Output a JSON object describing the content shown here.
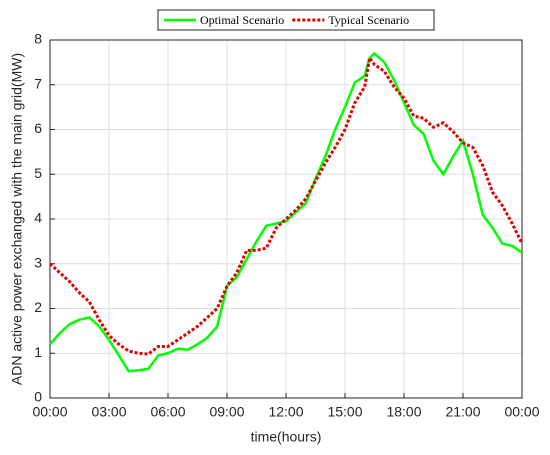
{
  "chart_data": {
    "type": "line",
    "x_label": "time(hours)",
    "y_label": "ADN active power exchanged with the main grid(MW)",
    "x": [
      0,
      0.5,
      1,
      1.5,
      2,
      2.5,
      3,
      3.5,
      4,
      4.5,
      5,
      5.5,
      6,
      6.5,
      7,
      7.5,
      8,
      8.5,
      9,
      9.5,
      10,
      10.5,
      11,
      11.5,
      12,
      12.5,
      13,
      13.5,
      14,
      14.5,
      15,
      15.5,
      16,
      16.25,
      16.5,
      17,
      17.5,
      18,
      18.5,
      19,
      19.5,
      20,
      20.5,
      21,
      21.5,
      22,
      22.5,
      23,
      23.5,
      24
    ],
    "series": [
      {
        "name": "Optimal Scenario",
        "color": "#00ff00",
        "dash": "solid",
        "values": [
          1.2,
          1.45,
          1.65,
          1.75,
          1.8,
          1.6,
          1.3,
          0.95,
          0.6,
          0.62,
          0.65,
          0.95,
          1.0,
          1.1,
          1.08,
          1.2,
          1.35,
          1.6,
          2.5,
          2.7,
          3.1,
          3.5,
          3.85,
          3.9,
          3.95,
          4.15,
          4.35,
          4.9,
          5.4,
          6.0,
          6.5,
          7.05,
          7.2,
          7.6,
          7.7,
          7.5,
          7.1,
          6.6,
          6.1,
          5.9,
          5.3,
          5.0,
          5.4,
          5.75,
          5.0,
          4.1,
          3.8,
          3.45,
          3.4,
          3.25
        ]
      },
      {
        "name": "Typical Scenario",
        "color": "#e00000",
        "dash": "dotted",
        "values": [
          3.0,
          2.8,
          2.6,
          2.35,
          2.15,
          1.75,
          1.4,
          1.2,
          1.05,
          1.0,
          0.98,
          1.15,
          1.15,
          1.3,
          1.45,
          1.6,
          1.8,
          2.0,
          2.5,
          2.8,
          3.3,
          3.3,
          3.35,
          3.8,
          4.0,
          4.2,
          4.45,
          4.85,
          5.25,
          5.6,
          6.0,
          6.6,
          6.95,
          7.6,
          7.45,
          7.3,
          6.95,
          6.7,
          6.3,
          6.25,
          6.05,
          6.15,
          5.95,
          5.7,
          5.6,
          5.2,
          4.6,
          4.3,
          3.9,
          3.45
        ]
      }
    ],
    "xlim": [
      0,
      24
    ],
    "xticks": [
      {
        "value": 0,
        "label": "00:00"
      },
      {
        "value": 3,
        "label": "03:00"
      },
      {
        "value": 6,
        "label": "06:00"
      },
      {
        "value": 9,
        "label": "09:00"
      },
      {
        "value": 12,
        "label": "12:00"
      },
      {
        "value": 15,
        "label": "15:00"
      },
      {
        "value": 18,
        "label": "18:00"
      },
      {
        "value": 21,
        "label": "21:00"
      },
      {
        "value": 24,
        "label": "00:00"
      }
    ],
    "ylim": [
      0,
      8
    ],
    "yticks": [
      0,
      1,
      2,
      3,
      4,
      5,
      6,
      7,
      8
    ],
    "grid": true,
    "legend": "top"
  }
}
